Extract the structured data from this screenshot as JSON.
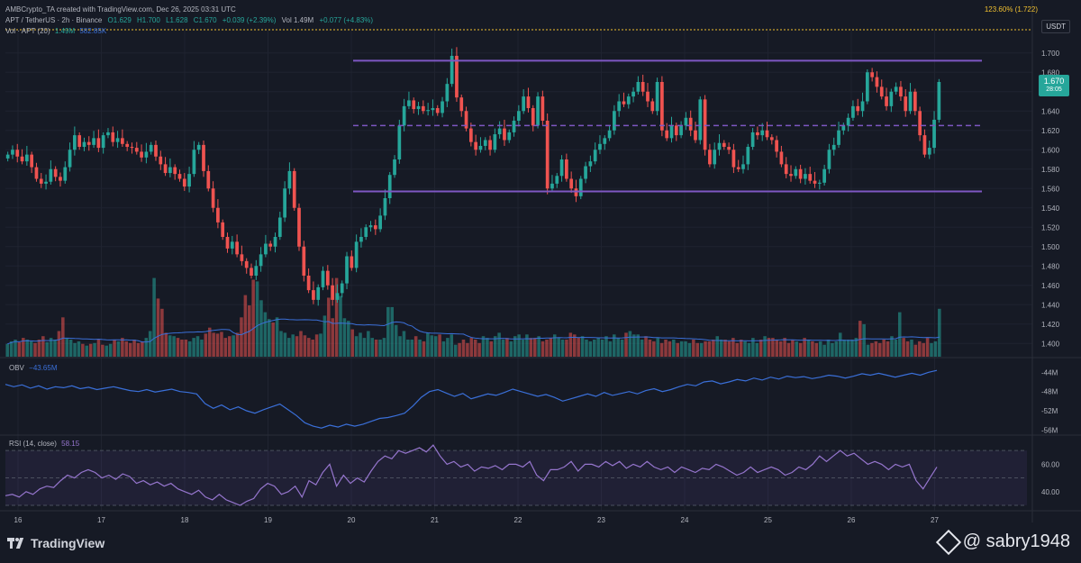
{
  "header": {
    "creator": "AMBCrypto_TA created with TradingView.com, Dec 26, 2025 03:31 UTC",
    "fib_level": "123.60% (1.722)",
    "unit_button": "USDT"
  },
  "symbol_line": {
    "name": "APT / TetherUS · 2h · Binance",
    "open": "O1.629",
    "high": "H1.700",
    "low": "L1.628",
    "close": "C1.670",
    "change": "+0.039 (+2.39%)",
    "vol": "Vol 1.49M",
    "vol_change": "+0.077 (+4.83%)"
  },
  "volume_label": {
    "name": "Vol · APT (20)",
    "v1": "1.49M",
    "v2": "582.85K"
  },
  "obv_label": {
    "name": "OBV",
    "value": "−43.65M"
  },
  "rsi_label": {
    "name": "RSI (14, close)",
    "value": "58.15"
  },
  "price_tag": {
    "price": "1.670",
    "countdown": "28:05"
  },
  "footer": {
    "logo_text": "TradingView",
    "watermark": "@ sabry1948"
  },
  "colors": {
    "up": "#26a69a",
    "down": "#ef5350",
    "channel": "#7e57c2",
    "obv": "#3a6fd8",
    "rsi": "#9575cd",
    "background": "#161a25"
  },
  "chart_data": [
    {
      "type": "candlestick",
      "title": "APT / TetherUS · 2h · Binance",
      "x_ticks": [
        "16",
        "17",
        "18",
        "19",
        "20",
        "21",
        "22",
        "23",
        "24",
        "25",
        "26",
        "27"
      ],
      "y_ticks": [
        "1.700",
        "1.680",
        "1.660",
        "1.640",
        "1.620",
        "1.600",
        "1.580",
        "1.560",
        "1.540",
        "1.520",
        "1.500",
        "1.480",
        "1.460",
        "1.440",
        "1.420",
        "1.400"
      ],
      "ylim": [
        1.39,
        1.71
      ],
      "channel": {
        "upper": 1.692,
        "lower": 1.557,
        "mid": 1.625
      },
      "closes": [
        1.595,
        1.6,
        1.593,
        1.588,
        1.595,
        1.582,
        1.57,
        1.565,
        1.567,
        1.58,
        1.572,
        1.568,
        1.582,
        1.6,
        1.615,
        1.603,
        1.608,
        1.605,
        1.612,
        1.602,
        1.615,
        1.618,
        1.608,
        1.612,
        1.606,
        1.603,
        1.602,
        1.598,
        1.592,
        1.598,
        1.605,
        1.593,
        1.585,
        1.576,
        1.582,
        1.575,
        1.57,
        1.562,
        1.575,
        1.6,
        1.605,
        1.578,
        1.56,
        1.54,
        1.525,
        1.51,
        1.498,
        1.505,
        1.492,
        1.485,
        1.478,
        1.47,
        1.48,
        1.492,
        1.503,
        1.5,
        1.51,
        1.53,
        1.56,
        1.578,
        1.54,
        1.5,
        1.47,
        1.455,
        1.445,
        1.458,
        1.475,
        1.46,
        1.445,
        1.452,
        1.462,
        1.49,
        1.478,
        1.505,
        1.51,
        1.52,
        1.522,
        1.518,
        1.532,
        1.55,
        1.574,
        1.59,
        1.625,
        1.645,
        1.651,
        1.642,
        1.645,
        1.64,
        1.641,
        1.643,
        1.638,
        1.65,
        1.668,
        1.697,
        1.654,
        1.64,
        1.622,
        1.608,
        1.6,
        1.604,
        1.61,
        1.6,
        1.616,
        1.622,
        1.61,
        1.618,
        1.63,
        1.64,
        1.655,
        1.643,
        1.625,
        1.655,
        1.63,
        1.56,
        1.565,
        1.573,
        1.59,
        1.57,
        1.56,
        1.552,
        1.57,
        1.583,
        1.588,
        1.6,
        1.606,
        1.612,
        1.62,
        1.64,
        1.65,
        1.647,
        1.655,
        1.66,
        1.67,
        1.66,
        1.65,
        1.64,
        1.67,
        1.62,
        1.612,
        1.625,
        1.615,
        1.625,
        1.633,
        1.62,
        1.61,
        1.652,
        1.6,
        1.585,
        1.6,
        1.607,
        1.603,
        1.6,
        1.582,
        1.58,
        1.585,
        1.603,
        1.618,
        1.615,
        1.62,
        1.613,
        1.61,
        1.598,
        1.585,
        1.575,
        1.573,
        1.58,
        1.57,
        1.575,
        1.568,
        1.565,
        1.566,
        1.58,
        1.6,
        1.605,
        1.62,
        1.625,
        1.633,
        1.645,
        1.64,
        1.65,
        1.68,
        1.675,
        1.665,
        1.655,
        1.645,
        1.66,
        1.665,
        1.655,
        1.64,
        1.66,
        1.64,
        1.615,
        1.595,
        1.602,
        1.631,
        1.67
      ],
      "volume_ylim": [
        0,
        1.0
      ],
      "volume": [
        0.15,
        0.18,
        0.2,
        0.17,
        0.22,
        0.2,
        0.18,
        0.16,
        0.2,
        0.24,
        0.17,
        0.22,
        0.2,
        0.3,
        0.46,
        0.22,
        0.2,
        0.16,
        0.18,
        0.15,
        0.13,
        0.15,
        0.16,
        0.2,
        0.14,
        0.13,
        0.15,
        0.2,
        0.18,
        0.22,
        0.18,
        0.16,
        0.2,
        0.16,
        0.18,
        0.22,
        0.3,
        0.92,
        0.68,
        0.56,
        0.28,
        0.25,
        0.24,
        0.22,
        0.2,
        0.2,
        0.18,
        0.22,
        0.24,
        0.2,
        0.27,
        0.34,
        0.28,
        0.27,
        0.29,
        0.22,
        0.24,
        0.25,
        0.28,
        0.46,
        0.72,
        0.6,
        0.9,
        0.88,
        0.66,
        0.52,
        0.44,
        0.4,
        0.46,
        0.3,
        0.28,
        0.22,
        0.26,
        0.24,
        0.3,
        0.25,
        0.22,
        0.2,
        0.26,
        0.27,
        0.48,
        0.69,
        0.45,
        0.92,
        0.71,
        0.45,
        0.42,
        0.32,
        0.24,
        0.28,
        0.22,
        0.3,
        0.22,
        0.2,
        0.2,
        0.22,
        0.58,
        0.58,
        0.37,
        0.24,
        0.3,
        0.2,
        0.2,
        0.24,
        0.2,
        0.18,
        0.28,
        0.25,
        0.24,
        0.26,
        0.18,
        0.22,
        0.26,
        0.14,
        0.16,
        0.2,
        0.16,
        0.22,
        0.2,
        0.16,
        0.24,
        0.22,
        0.18,
        0.24,
        0.28,
        0.2,
        0.22,
        0.18,
        0.24,
        0.26,
        0.2,
        0.26,
        0.22,
        0.22,
        0.24,
        0.18,
        0.2,
        0.22,
        0.26,
        0.22,
        0.2,
        0.2,
        0.28,
        0.26,
        0.22,
        0.24,
        0.2,
        0.18,
        0.2,
        0.22,
        0.2,
        0.24,
        0.18,
        0.26,
        0.22,
        0.2,
        0.28,
        0.3,
        0.26,
        0.26,
        0.2,
        0.24,
        0.2,
        0.18,
        0.22,
        0.16,
        0.2,
        0.18,
        0.2,
        0.16,
        0.18,
        0.18,
        0.16,
        0.2,
        0.16,
        0.16,
        0.18,
        0.18,
        0.2,
        0.24,
        0.2,
        0.2,
        0.18,
        0.22,
        0.16,
        0.2,
        0.18,
        0.16,
        0.22,
        0.16,
        0.2,
        0.24,
        0.22,
        0.22,
        0.2,
        0.18,
        0.22,
        0.16,
        0.2,
        0.18,
        0.16,
        0.22,
        0.2,
        0.18,
        0.16,
        0.18,
        0.14,
        0.2,
        0.16,
        0.18,
        0.28,
        0.2,
        0.2,
        0.2,
        0.22,
        0.42,
        0.38,
        0.14,
        0.16,
        0.18,
        0.16,
        0.2,
        0.18,
        0.24,
        0.2,
        0.52,
        0.22,
        0.18,
        0.2,
        0.14,
        0.18,
        0.16,
        0.22,
        0.16,
        0.18,
        0.56
      ]
    },
    {
      "type": "line",
      "title": "OBV",
      "y_ticks": [
        "-44M",
        "-48M",
        "-52M",
        "-56M"
      ],
      "ylim": [
        -56.5,
        -43
      ],
      "values": [
        -46.5,
        -47.0,
        -46.6,
        -47.3,
        -46.8,
        -47.5,
        -47.0,
        -47.2,
        -46.8,
        -47.4,
        -47.1,
        -47.6,
        -47.3,
        -47.0,
        -47.4,
        -47.8,
        -48.0,
        -47.6,
        -48.1,
        -47.8,
        -47.5,
        -48.0,
        -48.2,
        -48.5,
        -50.5,
        -51.5,
        -50.8,
        -51.8,
        -51.2,
        -52.0,
        -52.5,
        -51.8,
        -51.2,
        -50.6,
        -51.8,
        -53.0,
        -54.5,
        -55.2,
        -55.6,
        -55.0,
        -55.4,
        -54.8,
        -55.2,
        -54.8,
        -54.2,
        -53.6,
        -53.4,
        -53.0,
        -52.5,
        -51.0,
        -49.2,
        -48.0,
        -47.6,
        -48.3,
        -49.0,
        -48.4,
        -49.5,
        -49.0,
        -48.5,
        -48.8,
        -48.2,
        -47.5,
        -48.0,
        -48.5,
        -49.0,
        -48.6,
        -49.2,
        -50.0,
        -49.5,
        -49.0,
        -48.5,
        -49.0,
        -48.2,
        -48.8,
        -48.4,
        -48.0,
        -48.5,
        -47.8,
        -47.4,
        -48.0,
        -47.6,
        -47.0,
        -46.5,
        -46.8,
        -46.0,
        -45.8,
        -46.4,
        -46.0,
        -45.5,
        -45.8,
        -45.2,
        -45.6,
        -45.0,
        -45.4,
        -44.8,
        -45.1,
        -44.9,
        -45.3,
        -45.0,
        -44.6,
        -44.8,
        -45.2,
        -44.8,
        -44.3,
        -44.6,
        -44.2,
        -44.6,
        -45.0,
        -44.6,
        -44.2,
        -44.6,
        -44.0,
        -43.6
      ]
    },
    {
      "type": "line",
      "title": "RSI (14, close)",
      "y_ticks": [
        "60.00",
        "40.00"
      ],
      "ylim": [
        28,
        78
      ],
      "band": [
        30,
        70
      ],
      "values": [
        37,
        38,
        36,
        40,
        38,
        42,
        44,
        43,
        48,
        52,
        50,
        54,
        56,
        54,
        50,
        52,
        49,
        53,
        51,
        46,
        48,
        45,
        47,
        44,
        46,
        42,
        40,
        38,
        41,
        36,
        34,
        38,
        34,
        32,
        30,
        33,
        35,
        42,
        46,
        44,
        38,
        40,
        44,
        36,
        48,
        45,
        54,
        60,
        44,
        52,
        46,
        50,
        47,
        55,
        62,
        66,
        64,
        70,
        68,
        70,
        72,
        69,
        74,
        66,
        60,
        62,
        58,
        60,
        55,
        58,
        57,
        59,
        56,
        60,
        60,
        58,
        62,
        52,
        48,
        56,
        56,
        58,
        62,
        55,
        60,
        60,
        58,
        62,
        59,
        62,
        57,
        60,
        58,
        62,
        58,
        56,
        58,
        54,
        58,
        56,
        54,
        57,
        56,
        60,
        58,
        55,
        52,
        54,
        58,
        54,
        56,
        58,
        56,
        52,
        54,
        58,
        56,
        60,
        66,
        62,
        66,
        70,
        66,
        68,
        64,
        60,
        62,
        60,
        56,
        60,
        58,
        60,
        48,
        42,
        50,
        58
      ]
    }
  ]
}
